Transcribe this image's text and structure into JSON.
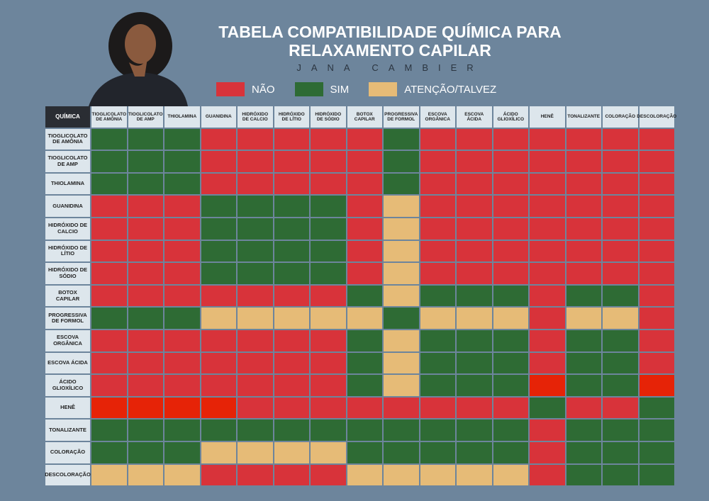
{
  "header": {
    "title": "TABELA COMPATIBILIDADE QUÍMICA PARA RELAXAMENTO CAPILAR",
    "brand": "JANA CAMBIER"
  },
  "legend": [
    {
      "label": "NÃO",
      "color": "#d8333a"
    },
    {
      "label": "SIM",
      "color": "#2e6b34"
    },
    {
      "label": "ATENÇÃO/TALVEZ",
      "color": "#e6bb77"
    }
  ],
  "table": {
    "corner": "QUÍMICA",
    "columns": [
      "TIOGLICOLATO DE AMÔNIA",
      "TIOGLICOLATO DE AMP",
      "THIOLAMINA",
      "GUANIDINA",
      "HIDRÓXIDO DE CALCIO",
      "HIDRÓXIDO DE LÍTIO",
      "HIDRÓXIDO DE SÓDIO",
      "BOTOX CAPILAR",
      "PROGRESSIVA DE FORMOL",
      "ESCOVA ORGÂNICA",
      "ESCOVA ÁCIDA",
      "ÁCIDO GLIOXÍLICO",
      "HENÊ",
      "TONALIZANTE",
      "COLORAÇÃO",
      "DESCOLORAÇÃO"
    ],
    "rows": [
      {
        "label": "TIOGLICOLATO DE AMÔNIA",
        "cells": [
          "#2e6b34",
          "#2e6b34",
          "#2e6b34",
          "#d8333a",
          "#d8333a",
          "#d8333a",
          "#d8333a",
          "#d8333a",
          "#2e6b34",
          "#d8333a",
          "#d8333a",
          "#d8333a",
          "#d8333a",
          "#d8333a",
          "#d8333a",
          "#d8333a"
        ]
      },
      {
        "label": "TIOGLICOLATO DE AMP",
        "cells": [
          "#2e6b34",
          "#2e6b34",
          "#2e6b34",
          "#d8333a",
          "#d8333a",
          "#d8333a",
          "#d8333a",
          "#d8333a",
          "#2e6b34",
          "#d8333a",
          "#d8333a",
          "#d8333a",
          "#d8333a",
          "#d8333a",
          "#d8333a",
          "#d8333a"
        ]
      },
      {
        "label": "THIOLAMINA",
        "cells": [
          "#2e6b34",
          "#2e6b34",
          "#2e6b34",
          "#d8333a",
          "#d8333a",
          "#d8333a",
          "#d8333a",
          "#d8333a",
          "#2e6b34",
          "#d8333a",
          "#d8333a",
          "#d8333a",
          "#d8333a",
          "#d8333a",
          "#d8333a",
          "#d8333a"
        ]
      },
      {
        "label": "GUANIDINA",
        "cells": [
          "#d8333a",
          "#d8333a",
          "#d8333a",
          "#2e6b34",
          "#2e6b34",
          "#2e6b34",
          "#2e6b34",
          "#d8333a",
          "#e6bb77",
          "#d8333a",
          "#d8333a",
          "#d8333a",
          "#d8333a",
          "#d8333a",
          "#d8333a",
          "#d8333a"
        ]
      },
      {
        "label": "HIDRÓXIDO DE CALCIO",
        "cells": [
          "#d8333a",
          "#d8333a",
          "#d8333a",
          "#2e6b34",
          "#2e6b34",
          "#2e6b34",
          "#2e6b34",
          "#d8333a",
          "#e6bb77",
          "#d8333a",
          "#d8333a",
          "#d8333a",
          "#d8333a",
          "#d8333a",
          "#d8333a",
          "#d8333a"
        ]
      },
      {
        "label": "HIDRÓXIDO DE LÍTIO",
        "cells": [
          "#d8333a",
          "#d8333a",
          "#d8333a",
          "#2e6b34",
          "#2e6b34",
          "#2e6b34",
          "#2e6b34",
          "#d8333a",
          "#e6bb77",
          "#d8333a",
          "#d8333a",
          "#d8333a",
          "#d8333a",
          "#d8333a",
          "#d8333a",
          "#d8333a"
        ]
      },
      {
        "label": "HIDRÓXIDO DE SÓDIO",
        "cells": [
          "#d8333a",
          "#d8333a",
          "#d8333a",
          "#2e6b34",
          "#2e6b34",
          "#2e6b34",
          "#2e6b34",
          "#d8333a",
          "#e6bb77",
          "#d8333a",
          "#d8333a",
          "#d8333a",
          "#d8333a",
          "#d8333a",
          "#d8333a",
          "#d8333a"
        ]
      },
      {
        "label": "BOTOX CAPILAR",
        "cells": [
          "#d8333a",
          "#d8333a",
          "#d8333a",
          "#d8333a",
          "#d8333a",
          "#d8333a",
          "#d8333a",
          "#2e6b34",
          "#e6bb77",
          "#2e6b34",
          "#2e6b34",
          "#2e6b34",
          "#d8333a",
          "#2e6b34",
          "#2e6b34",
          "#d8333a"
        ]
      },
      {
        "label": "PROGRESSIVA DE FORMOL",
        "cells": [
          "#2e6b34",
          "#2e6b34",
          "#2e6b34",
          "#e6bb77",
          "#e6bb77",
          "#e6bb77",
          "#e6bb77",
          "#e6bb77",
          "#2e6b34",
          "#e6bb77",
          "#e6bb77",
          "#e6bb77",
          "#d8333a",
          "#e6bb77",
          "#e6bb77",
          "#d8333a"
        ]
      },
      {
        "label": "ESCOVA ORGÂNICA",
        "cells": [
          "#d8333a",
          "#d8333a",
          "#d8333a",
          "#d8333a",
          "#d8333a",
          "#d8333a",
          "#d8333a",
          "#2e6b34",
          "#e6bb77",
          "#2e6b34",
          "#2e6b34",
          "#2e6b34",
          "#d8333a",
          "#2e6b34",
          "#2e6b34",
          "#d8333a"
        ]
      },
      {
        "label": "ESCOVA ÁCIDA",
        "cells": [
          "#d8333a",
          "#d8333a",
          "#d8333a",
          "#d8333a",
          "#d8333a",
          "#d8333a",
          "#d8333a",
          "#2e6b34",
          "#e6bb77",
          "#2e6b34",
          "#2e6b34",
          "#2e6b34",
          "#d8333a",
          "#2e6b34",
          "#2e6b34",
          "#d8333a"
        ]
      },
      {
        "label": "ÁCIDO GLIOXÍLICO",
        "cells": [
          "#d8333a",
          "#d8333a",
          "#d8333a",
          "#d8333a",
          "#d8333a",
          "#d8333a",
          "#d8333a",
          "#2e6b34",
          "#e6bb77",
          "#2e6b34",
          "#2e6b34",
          "#2e6b34",
          "#e62307",
          "#2e6b34",
          "#2e6b34",
          "#e62307"
        ]
      },
      {
        "label": "HENÊ",
        "cells": [
          "#e62307",
          "#e62307",
          "#e62307",
          "#e62307",
          "#d8333a",
          "#d8333a",
          "#d8333a",
          "#d8333a",
          "#d8333a",
          "#d8333a",
          "#d8333a",
          "#d8333a",
          "#2e6b34",
          "#d8333a",
          "#d8333a",
          "#2e6b34"
        ]
      },
      {
        "label": "TONALIZANTE",
        "cells": [
          "#2e6b34",
          "#2e6b34",
          "#2e6b34",
          "#2e6b34",
          "#2e6b34",
          "#2e6b34",
          "#2e6b34",
          "#2e6b34",
          "#2e6b34",
          "#2e6b34",
          "#2e6b34",
          "#2e6b34",
          "#d8333a",
          "#2e6b34",
          "#2e6b34",
          "#2e6b34"
        ]
      },
      {
        "label": "COLORAÇÃO",
        "cells": [
          "#2e6b34",
          "#2e6b34",
          "#2e6b34",
          "#e6bb77",
          "#e6bb77",
          "#e6bb77",
          "#e6bb77",
          "#2e6b34",
          "#2e6b34",
          "#2e6b34",
          "#2e6b34",
          "#2e6b34",
          "#d8333a",
          "#2e6b34",
          "#2e6b34",
          "#2e6b34"
        ]
      },
      {
        "label": "DESCOLORAÇÃO",
        "cells": [
          "#e6bb77",
          "#e6bb77",
          "#e6bb77",
          "#d8333a",
          "#d8333a",
          "#d8333a",
          "#d8333a",
          "#e6bb77",
          "#e6bb77",
          "#e6bb77",
          "#e6bb77",
          "#e6bb77",
          "#d8333a",
          "#2e6b34",
          "#2e6b34",
          "#2e6b34"
        ]
      }
    ]
  }
}
